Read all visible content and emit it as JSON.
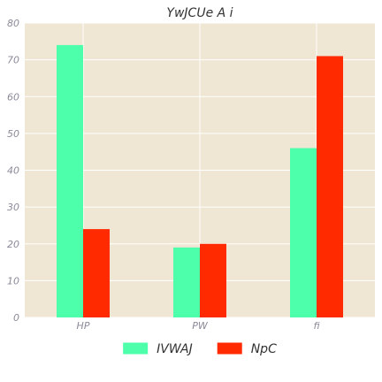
{
  "chart_data": {
    "type": "bar",
    "title": "YwJCUe A i",
    "xlabel": "",
    "ylabel": "",
    "categories": [
      "HP",
      "PW",
      "fi"
    ],
    "series": [
      {
        "name": "IVWAJ",
        "values": [
          74,
          19,
          46
        ],
        "color": "#4dffaa"
      },
      {
        "name": "NpC",
        "values": [
          24,
          20,
          71
        ],
        "color": "#ff2a00"
      }
    ],
    "ylim": [
      0,
      80
    ],
    "yticks": [
      0,
      10,
      20,
      30,
      40,
      50,
      60,
      70,
      80
    ],
    "grid": true,
    "legend_position": "bottom-center",
    "background_color": "#efe6d4",
    "grid_color": "#ffffff"
  }
}
